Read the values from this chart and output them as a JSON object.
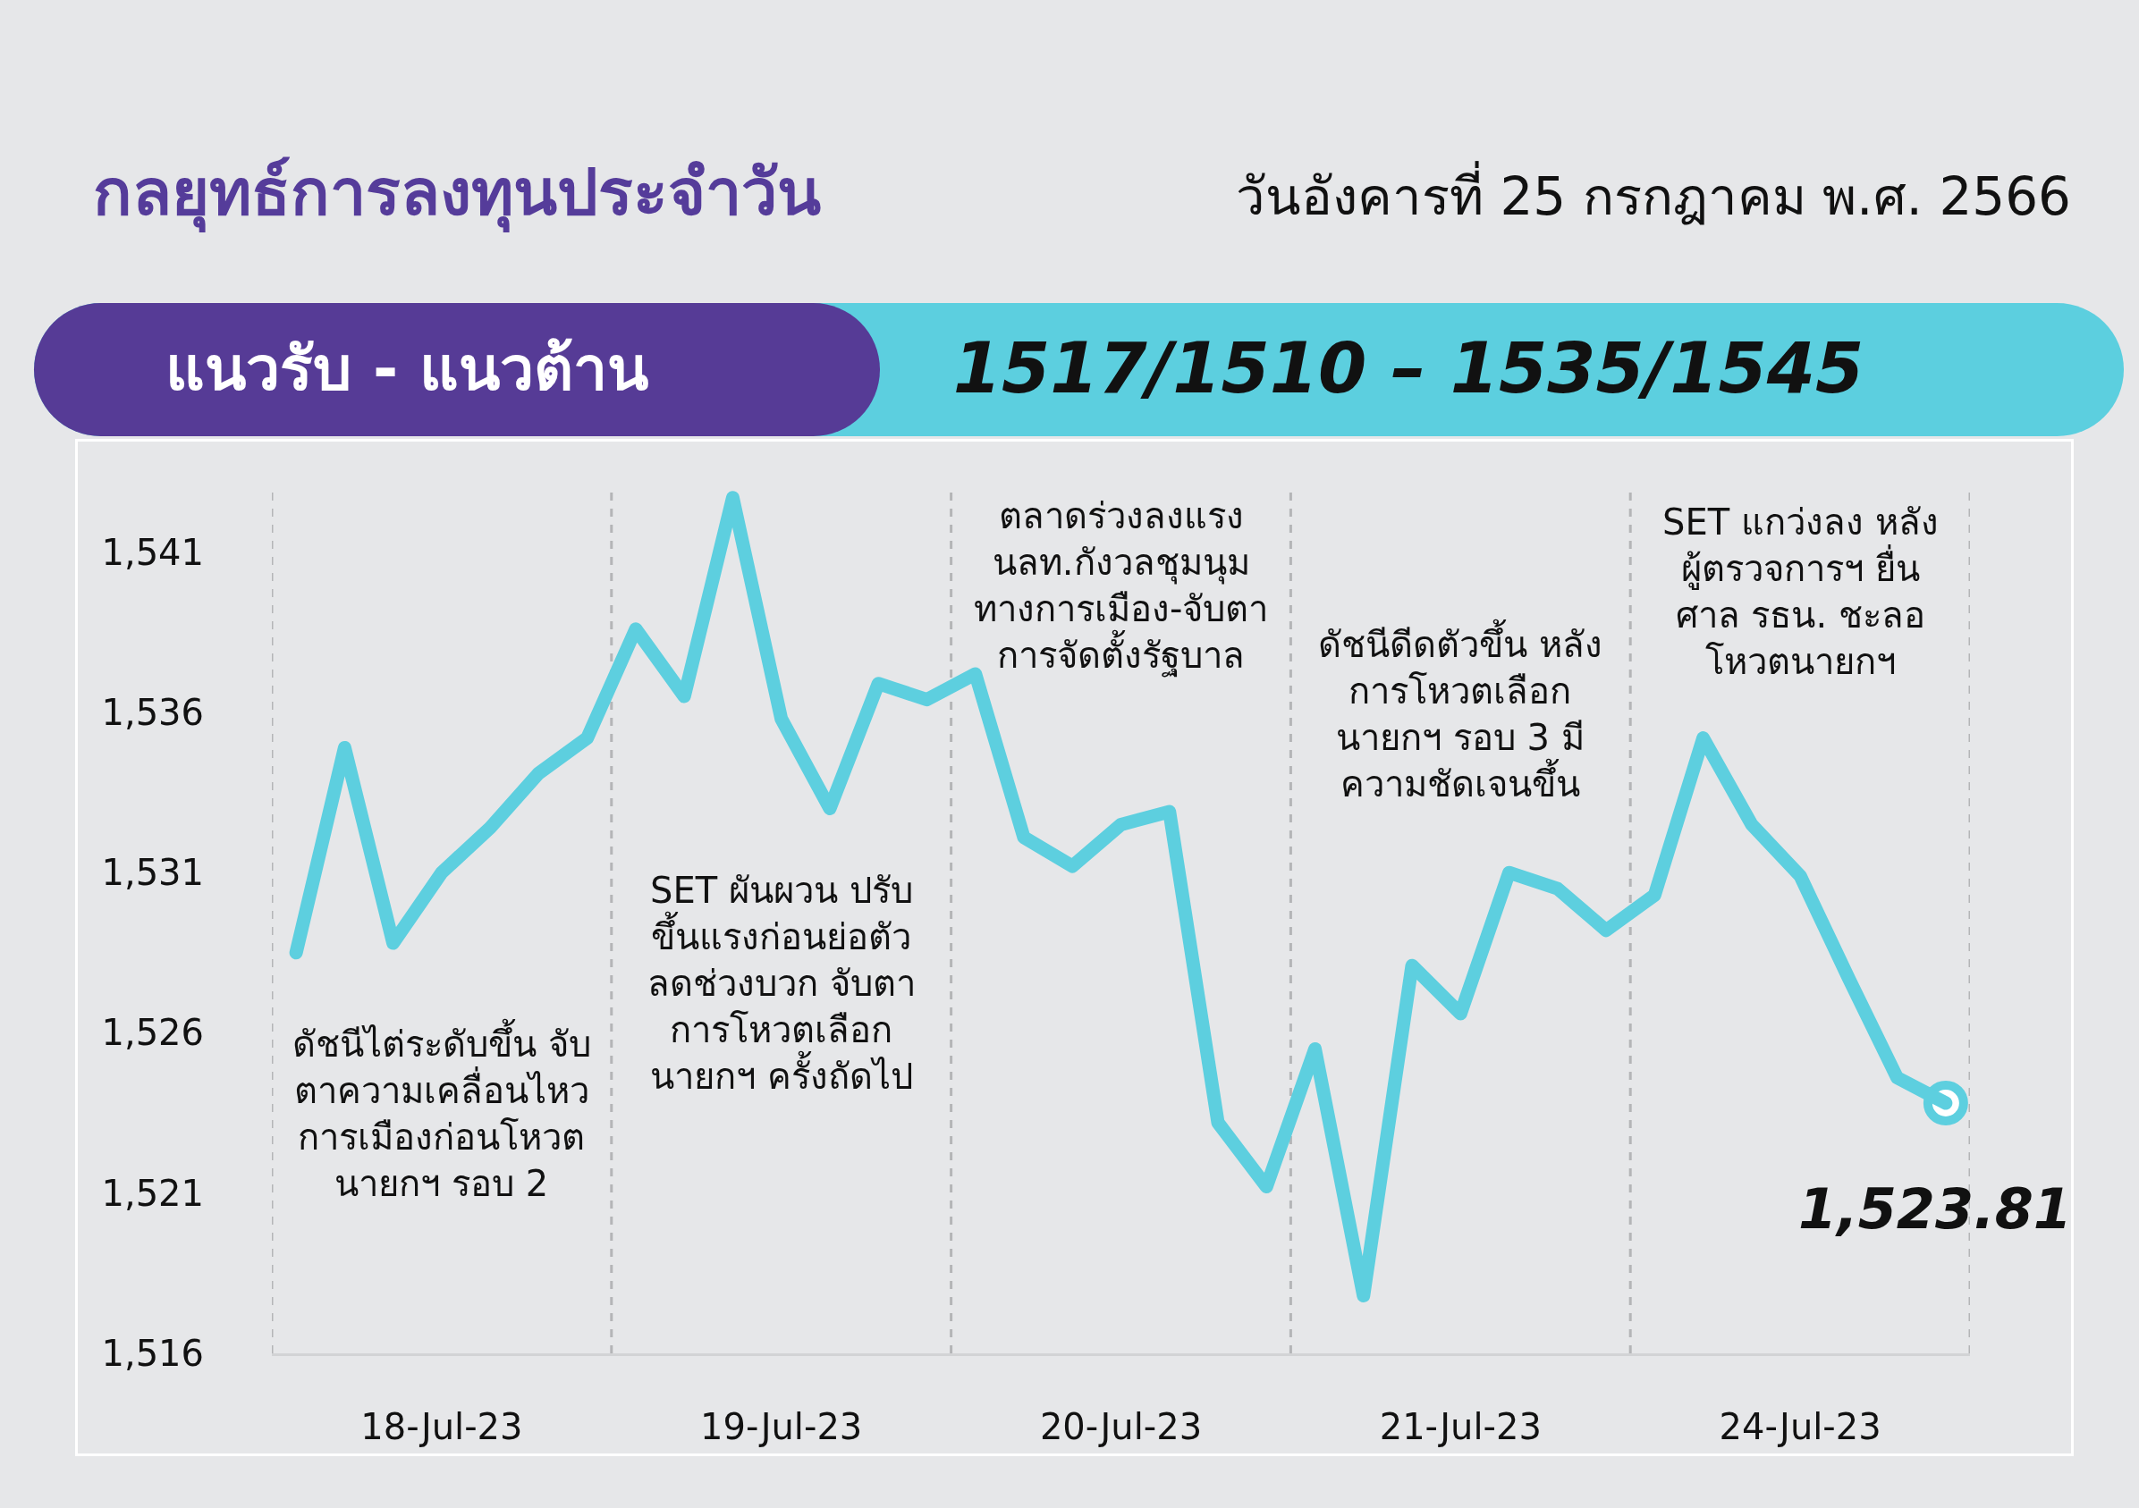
{
  "chart_data": {
    "type": "line",
    "title": "กลยุทธ์การลงทุนประจำวัน",
    "subtitle": "วันอังคารที่ 25 กรกฎาคม พ.ศ. 2566",
    "categories": [
      null,
      null,
      null,
      "18-Jul-23",
      null,
      null,
      null,
      null,
      null,
      null,
      "19-Jul-23",
      null,
      null,
      null,
      null,
      null,
      null,
      "20-Jul-23",
      null,
      null,
      null,
      null,
      null,
      null,
      "21-Jul-23",
      null,
      null,
      null,
      null,
      null,
      null,
      "24-Jul-23",
      null,
      null,
      null
    ],
    "series": [
      {
        "color": "#5dcfdf",
        "values": [
          1528.5,
          1534.9,
          1528.8,
          1531.0,
          1532.4,
          1534.1,
          1535.2,
          1538.6,
          1536.5,
          1542.7,
          1535.8,
          1533.0,
          1536.9,
          1536.4,
          1537.2,
          1532.1,
          1531.2,
          1532.5,
          1532.9,
          1523.2,
          1521.2,
          1525.5,
          1517.8,
          1528.1,
          1526.6,
          1531.0,
          1530.5,
          1529.2,
          1530.3,
          1535.2,
          1532.5,
          1530.9,
          1527.7,
          1524.6,
          1523.81
        ]
      },
      {
        "type": "scatter",
        "color": "#ffffff",
        "marker": "circle",
        "values": [
          null,
          null,
          null,
          null,
          null,
          null,
          null,
          null,
          null,
          null,
          null,
          null,
          null,
          null,
          null,
          null,
          null,
          null,
          null,
          null,
          null,
          null,
          null,
          null,
          null,
          null,
          null,
          null,
          null,
          null,
          null,
          null,
          null,
          null,
          1523.81
        ],
        "value_labels": [
          null,
          null,
          null,
          null,
          null,
          null,
          null,
          null,
          null,
          null,
          null,
          null,
          null,
          null,
          null,
          null,
          null,
          null,
          null,
          null,
          null,
          null,
          null,
          null,
          null,
          null,
          null,
          null,
          null,
          null,
          null,
          null,
          null,
          null,
          "1,523.81"
        ]
      }
    ],
    "ylim": [
      1516,
      1543
    ],
    "yticks": [
      {
        "value": 1516,
        "label": "1,516"
      },
      {
        "value": 1521,
        "label": "1,521"
      },
      {
        "value": 1526,
        "label": "1,526"
      },
      {
        "value": 1531,
        "label": "1,531"
      },
      {
        "value": 1536,
        "label": "1,536"
      },
      {
        "value": 1541,
        "label": "1,541"
      }
    ],
    "grid": "x",
    "annotations": [
      "แนวรับ - แนวต้าน",
      "1517/1510 – 1535/1545",
      "ดัชนีไต่ระดับขึ้น จับ\nตาความเคลื่อนไหว\nการเมืองก่อนโหวต\nนายกฯ รอบ 2",
      "SET ผันผวน ปรับ\nขึ้นแรงก่อนย่อตัว\nลดช่วงบวก จับตา\nการโหวตเลือก\nนายกฯ ครั้งถัดไป",
      "ตลาดร่วงลงแรง\nนลท.กังวลชุมนุม\nทางการเมือง-จับตา\nการจัดตั้งรัฐบาล",
      "ดัชนีดีดตัวขึ้น หลัง\nการโหวตเลือก\nนายกฯ รอบ 3 มี\nความชัดเจนขึ้น",
      "SET แกว่งลง หลัง\nผู้ตรวจการฯ ยื่น\nศาล รธน. ชะลอ\nโหวตนายกฯ"
    ]
  }
}
